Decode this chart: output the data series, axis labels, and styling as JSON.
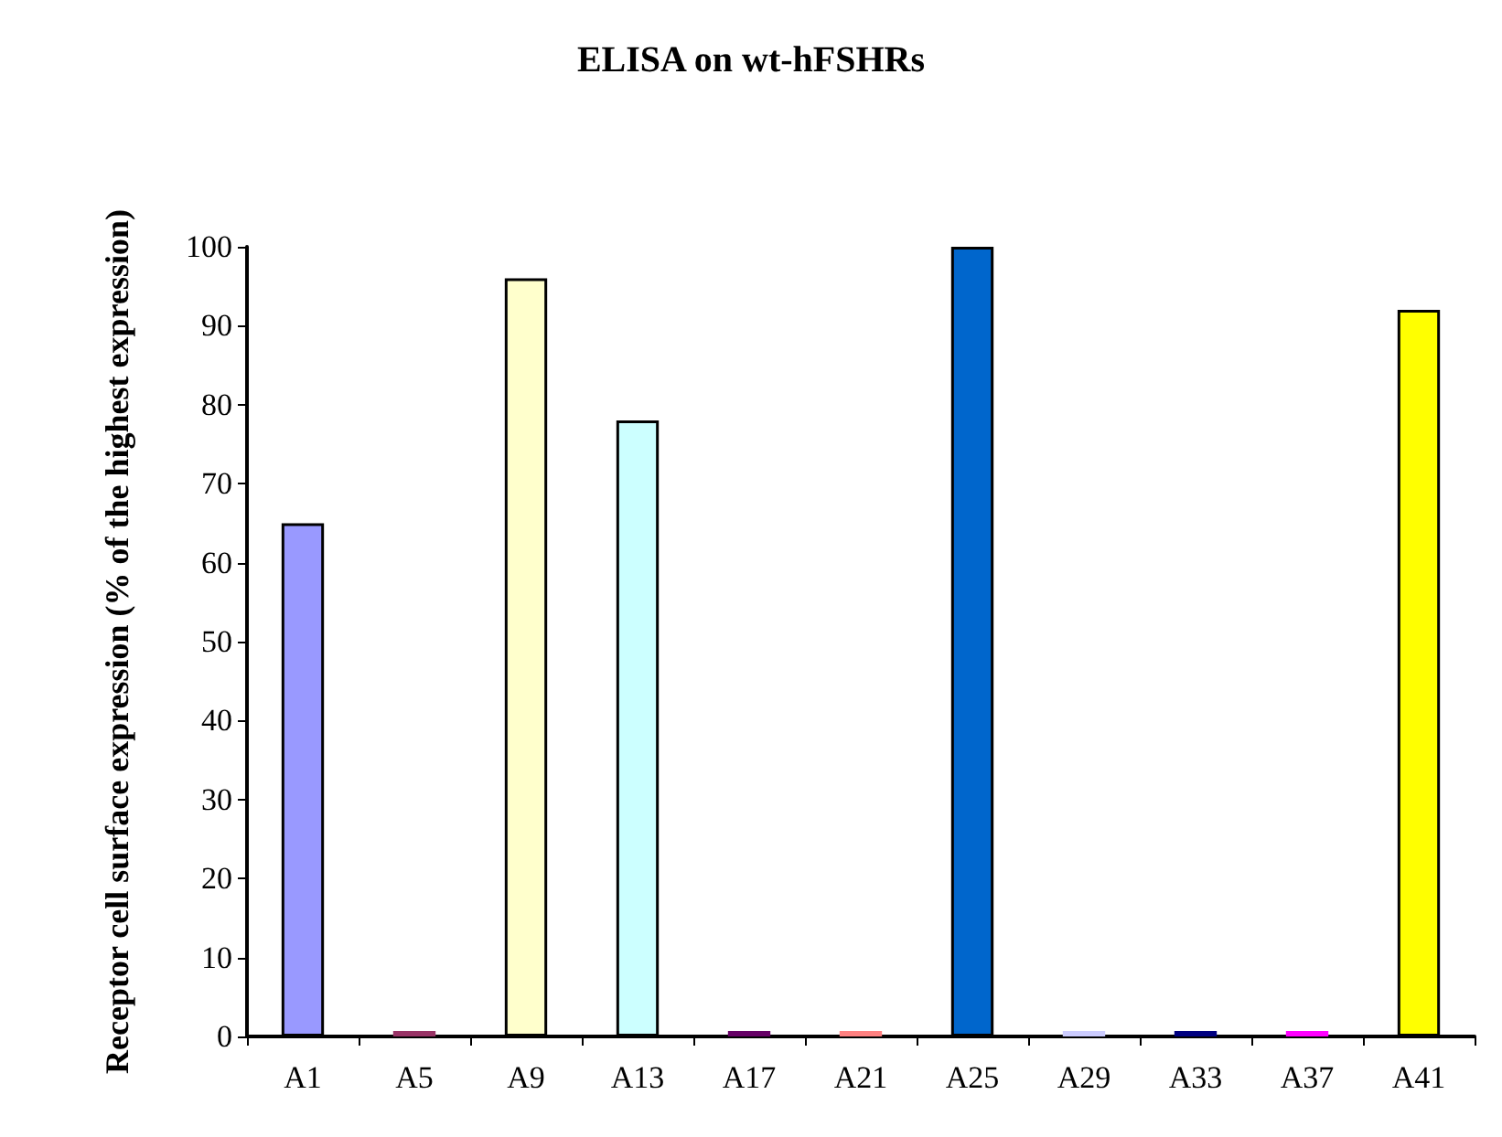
{
  "chart_data": {
    "type": "bar",
    "title": "ELISA on wt-hFSHRs",
    "ylabel": "Receptor cell surface expression (% of the highest expression)",
    "categories": [
      "A1",
      "A5",
      "A9",
      "A13",
      "A17",
      "A21",
      "A25",
      "A29",
      "A33",
      "A37",
      "A41"
    ],
    "values": [
      65,
      0,
      96,
      78,
      0,
      0,
      100,
      0,
      0,
      0,
      92
    ],
    "colors": [
      "#9999ff",
      "#993366",
      "#ffffcc",
      "#ccffff",
      "#660066",
      "#ff8080",
      "#0066cc",
      "#ccccff",
      "#000080",
      "#ff00ff",
      "#ffff00"
    ],
    "ylim": [
      0,
      100
    ],
    "yticks": [
      0,
      10,
      20,
      30,
      40,
      50,
      60,
      70,
      80,
      90,
      100
    ],
    "grid": false
  }
}
